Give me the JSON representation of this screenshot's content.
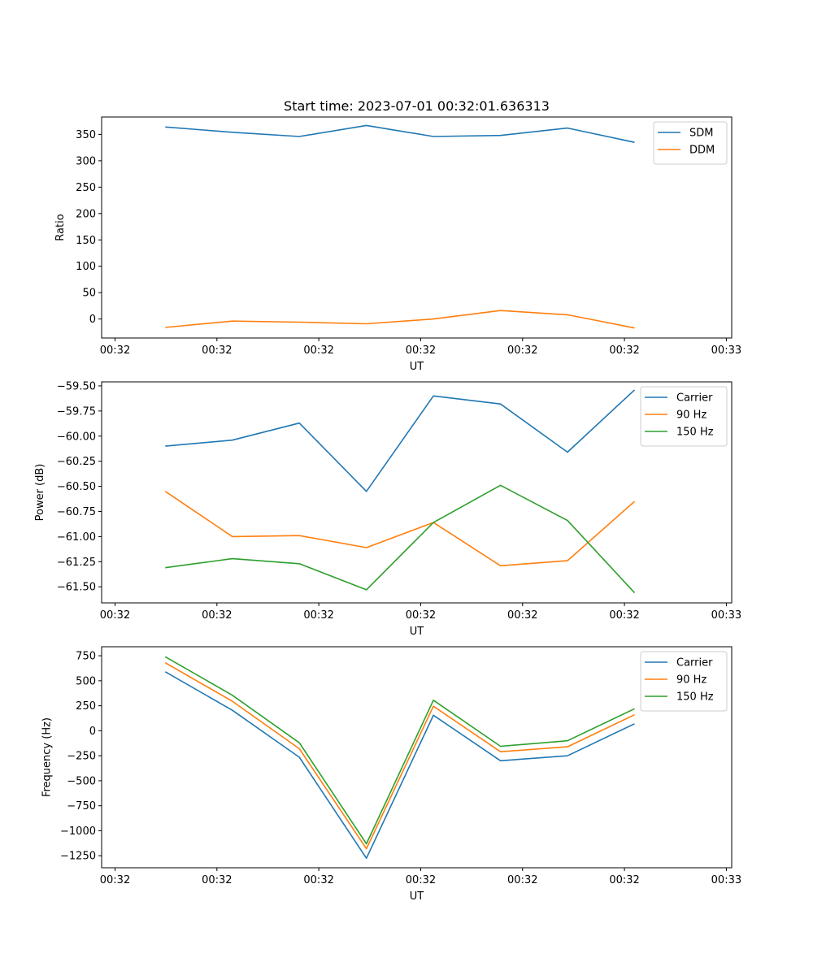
{
  "chart_data": [
    {
      "type": "line",
      "title": "Start time: 2023-07-01 00:32:01.636313",
      "xlabel": "UT",
      "ylabel": "Ratio",
      "x_tick_labels": [
        "00:32",
        "00:32",
        "00:32",
        "00:32",
        "00:32",
        "00:32",
        "00:33"
      ],
      "y_ticks": [
        0,
        50,
        100,
        150,
        200,
        250,
        300,
        350
      ],
      "y_tick_labels": [
        "0",
        "50",
        "100",
        "150",
        "200",
        "250",
        "300",
        "350"
      ],
      "ylim": [
        -36,
        383
      ],
      "xlim": [
        -0.2,
        9.2
      ],
      "x_tick_positions": [
        0,
        1.52,
        3.04,
        4.56,
        6.08,
        7.6,
        9.12
      ],
      "x": [
        0.75,
        1.75,
        2.75,
        3.75,
        4.75,
        5.75,
        6.75,
        7.75
      ],
      "series": [
        {
          "name": "SDM",
          "color": "#1f77b4",
          "values": [
            364,
            354,
            346,
            367,
            346,
            348,
            362,
            335
          ]
        },
        {
          "name": "DDM",
          "color": "#ff7f0e",
          "values": [
            -16,
            -4,
            -6,
            -9,
            0,
            16,
            8,
            -17
          ]
        }
      ],
      "legend": "top-right",
      "grid": false
    },
    {
      "type": "line",
      "title": "",
      "xlabel": "UT",
      "ylabel": "Power (dB)",
      "x_tick_labels": [
        "00:32",
        "00:32",
        "00:32",
        "00:32",
        "00:32",
        "00:32",
        "00:33"
      ],
      "y_ticks": [
        -61.5,
        -61.25,
        -61.0,
        -60.75,
        -60.5,
        -60.25,
        -60.0,
        -59.75,
        -59.5
      ],
      "y_tick_labels": [
        "−61.50",
        "−61.25",
        "−61.00",
        "−60.75",
        "−60.50",
        "−60.25",
        "−60.00",
        "−59.75",
        "−59.50"
      ],
      "ylim": [
        -61.66,
        -59.46
      ],
      "xlim": [
        -0.2,
        9.2
      ],
      "x_tick_positions": [
        0,
        1.52,
        3.04,
        4.56,
        6.08,
        7.6,
        9.12
      ],
      "x": [
        0.75,
        1.75,
        2.75,
        3.75,
        4.75,
        5.75,
        6.75,
        7.75
      ],
      "series": [
        {
          "name": "Carrier",
          "color": "#1f77b4",
          "values": [
            -60.1,
            -60.04,
            -59.87,
            -60.55,
            -59.6,
            -59.68,
            -60.16,
            -59.54
          ]
        },
        {
          "name": "90 Hz",
          "color": "#ff7f0e",
          "values": [
            -60.55,
            -61.0,
            -60.99,
            -61.11,
            -60.86,
            -61.29,
            -61.24,
            -60.65
          ]
        },
        {
          "name": "150 Hz",
          "color": "#2ca02c",
          "values": [
            -61.31,
            -61.22,
            -61.27,
            -61.53,
            -60.86,
            -60.49,
            -60.84,
            -61.56
          ]
        }
      ],
      "legend": "top-right",
      "grid": false
    },
    {
      "type": "line",
      "title": "",
      "xlabel": "UT",
      "ylabel": "Frequency (Hz)",
      "x_tick_labels": [
        "00:32",
        "00:32",
        "00:32",
        "00:32",
        "00:32",
        "00:32",
        "00:33"
      ],
      "y_ticks": [
        -1250,
        -1000,
        -750,
        -500,
        -250,
        0,
        250,
        500,
        750
      ],
      "y_tick_labels": [
        "−1250",
        "−1000",
        "−750",
        "−500",
        "−250",
        "0",
        "250",
        "500",
        "750"
      ],
      "ylim": [
        -1370,
        840
      ],
      "xlim": [
        -0.2,
        9.2
      ],
      "x_tick_positions": [
        0,
        1.52,
        3.04,
        4.56,
        6.08,
        7.6,
        9.12
      ],
      "x": [
        0.75,
        1.75,
        2.75,
        3.75,
        4.75,
        5.75,
        6.75,
        7.75
      ],
      "series": [
        {
          "name": "Carrier",
          "color": "#1f77b4",
          "values": [
            590,
            205,
            -265,
            -1275,
            155,
            -300,
            -250,
            70
          ]
        },
        {
          "name": "90 Hz",
          "color": "#ff7f0e",
          "values": [
            680,
            295,
            -180,
            -1180,
            245,
            -210,
            -160,
            160
          ]
        },
        {
          "name": "150 Hz",
          "color": "#2ca02c",
          "values": [
            740,
            355,
            -120,
            -1130,
            305,
            -155,
            -100,
            220
          ]
        }
      ],
      "legend": "top-right",
      "grid": false
    }
  ]
}
